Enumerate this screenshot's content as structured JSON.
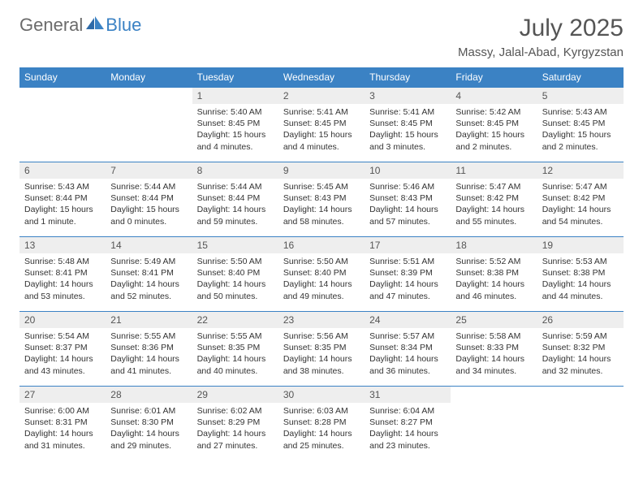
{
  "brand": {
    "part1": "General",
    "part2": "Blue"
  },
  "title": "July 2025",
  "location": "Massy, Jalal-Abad, Kyrgyzstan",
  "colors": {
    "header_bg": "#3b82c4",
    "header_text": "#ffffff",
    "daynum_bg": "#eeeeee",
    "text": "#333333",
    "border": "#3b82c4"
  },
  "weekdays": [
    "Sunday",
    "Monday",
    "Tuesday",
    "Wednesday",
    "Thursday",
    "Friday",
    "Saturday"
  ],
  "weeks": [
    [
      null,
      null,
      {
        "n": "1",
        "sr": "5:40 AM",
        "ss": "8:45 PM",
        "dl": "15 hours and 4 minutes."
      },
      {
        "n": "2",
        "sr": "5:41 AM",
        "ss": "8:45 PM",
        "dl": "15 hours and 4 minutes."
      },
      {
        "n": "3",
        "sr": "5:41 AM",
        "ss": "8:45 PM",
        "dl": "15 hours and 3 minutes."
      },
      {
        "n": "4",
        "sr": "5:42 AM",
        "ss": "8:45 PM",
        "dl": "15 hours and 2 minutes."
      },
      {
        "n": "5",
        "sr": "5:43 AM",
        "ss": "8:45 PM",
        "dl": "15 hours and 2 minutes."
      }
    ],
    [
      {
        "n": "6",
        "sr": "5:43 AM",
        "ss": "8:44 PM",
        "dl": "15 hours and 1 minute."
      },
      {
        "n": "7",
        "sr": "5:44 AM",
        "ss": "8:44 PM",
        "dl": "15 hours and 0 minutes."
      },
      {
        "n": "8",
        "sr": "5:44 AM",
        "ss": "8:44 PM",
        "dl": "14 hours and 59 minutes."
      },
      {
        "n": "9",
        "sr": "5:45 AM",
        "ss": "8:43 PM",
        "dl": "14 hours and 58 minutes."
      },
      {
        "n": "10",
        "sr": "5:46 AM",
        "ss": "8:43 PM",
        "dl": "14 hours and 57 minutes."
      },
      {
        "n": "11",
        "sr": "5:47 AM",
        "ss": "8:42 PM",
        "dl": "14 hours and 55 minutes."
      },
      {
        "n": "12",
        "sr": "5:47 AM",
        "ss": "8:42 PM",
        "dl": "14 hours and 54 minutes."
      }
    ],
    [
      {
        "n": "13",
        "sr": "5:48 AM",
        "ss": "8:41 PM",
        "dl": "14 hours and 53 minutes."
      },
      {
        "n": "14",
        "sr": "5:49 AM",
        "ss": "8:41 PM",
        "dl": "14 hours and 52 minutes."
      },
      {
        "n": "15",
        "sr": "5:50 AM",
        "ss": "8:40 PM",
        "dl": "14 hours and 50 minutes."
      },
      {
        "n": "16",
        "sr": "5:50 AM",
        "ss": "8:40 PM",
        "dl": "14 hours and 49 minutes."
      },
      {
        "n": "17",
        "sr": "5:51 AM",
        "ss": "8:39 PM",
        "dl": "14 hours and 47 minutes."
      },
      {
        "n": "18",
        "sr": "5:52 AM",
        "ss": "8:38 PM",
        "dl": "14 hours and 46 minutes."
      },
      {
        "n": "19",
        "sr": "5:53 AM",
        "ss": "8:38 PM",
        "dl": "14 hours and 44 minutes."
      }
    ],
    [
      {
        "n": "20",
        "sr": "5:54 AM",
        "ss": "8:37 PM",
        "dl": "14 hours and 43 minutes."
      },
      {
        "n": "21",
        "sr": "5:55 AM",
        "ss": "8:36 PM",
        "dl": "14 hours and 41 minutes."
      },
      {
        "n": "22",
        "sr": "5:55 AM",
        "ss": "8:35 PM",
        "dl": "14 hours and 40 minutes."
      },
      {
        "n": "23",
        "sr": "5:56 AM",
        "ss": "8:35 PM",
        "dl": "14 hours and 38 minutes."
      },
      {
        "n": "24",
        "sr": "5:57 AM",
        "ss": "8:34 PM",
        "dl": "14 hours and 36 minutes."
      },
      {
        "n": "25",
        "sr": "5:58 AM",
        "ss": "8:33 PM",
        "dl": "14 hours and 34 minutes."
      },
      {
        "n": "26",
        "sr": "5:59 AM",
        "ss": "8:32 PM",
        "dl": "14 hours and 32 minutes."
      }
    ],
    [
      {
        "n": "27",
        "sr": "6:00 AM",
        "ss": "8:31 PM",
        "dl": "14 hours and 31 minutes."
      },
      {
        "n": "28",
        "sr": "6:01 AM",
        "ss": "8:30 PM",
        "dl": "14 hours and 29 minutes."
      },
      {
        "n": "29",
        "sr": "6:02 AM",
        "ss": "8:29 PM",
        "dl": "14 hours and 27 minutes."
      },
      {
        "n": "30",
        "sr": "6:03 AM",
        "ss": "8:28 PM",
        "dl": "14 hours and 25 minutes."
      },
      {
        "n": "31",
        "sr": "6:04 AM",
        "ss": "8:27 PM",
        "dl": "14 hours and 23 minutes."
      },
      null,
      null
    ]
  ],
  "labels": {
    "sunrise": "Sunrise:",
    "sunset": "Sunset:",
    "daylight": "Daylight:"
  }
}
